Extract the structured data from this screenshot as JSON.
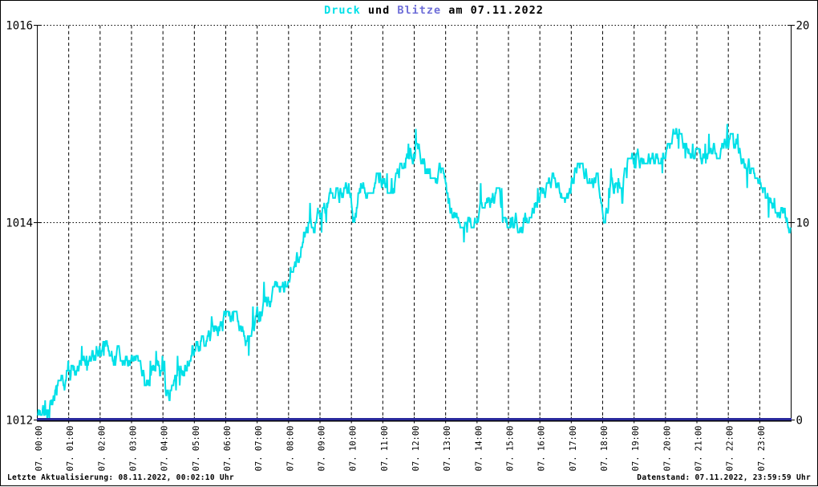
{
  "title": {
    "druck": "Druck",
    "und": " und ",
    "blitze": "Blitze",
    "date": " am 07.11.2022"
  },
  "footer": {
    "left": "Letzte Aktualisierung: 08.11.2022, 00:02:10 Uhr",
    "right": "Datenstand: 07.11.2022, 23:59:59 Uhr"
  },
  "colors": {
    "druck": "#00E0E8",
    "blitze_title": "#6E6ED8",
    "blitze_line": "#28289B",
    "grid": "#000000",
    "background": "#FFFFFF"
  },
  "chart_data": {
    "type": "line",
    "title": "Druck und Blitze am 07.11.2022",
    "grid": {
      "vertical": "hourly dashed",
      "horizontal": "dotted at 1014 and 1016"
    },
    "x_axis": {
      "range_hours": [
        0,
        24
      ],
      "labels": [
        "07. 00:00",
        "07. 01:00",
        "07. 02:00",
        "07. 03:00",
        "07. 04:00",
        "07. 05:00",
        "07. 06:00",
        "07. 07:00",
        "07. 08:00",
        "07. 09:00",
        "07. 10:00",
        "07. 11:00",
        "07. 12:00",
        "07. 13:00",
        "07. 14:00",
        "07. 15:00",
        "07. 16:00",
        "07. 17:00",
        "07. 18:00",
        "07. 19:00",
        "07. 20:00",
        "07. 21:00",
        "07. 22:00",
        "07. 23:00"
      ]
    },
    "left_axis": {
      "series": "Druck",
      "range": [
        1012,
        1016
      ],
      "ticks": [
        1012,
        1014,
        1016
      ],
      "labels": [
        "1012",
        "1014",
        "1016"
      ]
    },
    "right_axis": {
      "series": "Blitze",
      "range": [
        0,
        20
      ],
      "ticks": [
        0,
        10,
        20
      ],
      "labels": [
        "0",
        "10",
        "20"
      ]
    },
    "series": [
      {
        "name": "Druck",
        "axis": "left",
        "unit": "hPa",
        "color": "#00E0E8",
        "sample_minutes": 1,
        "noise": {
          "step_hpa": 0.05,
          "walk_levels": 2,
          "spike_prob": 0.05,
          "spike_hpa": 0.2,
          "seed": 20221107
        },
        "trend_points_hour_hpa": [
          [
            0.0,
            1012.07
          ],
          [
            0.3,
            1012.18
          ],
          [
            0.6,
            1012.28
          ],
          [
            1.0,
            1012.4
          ],
          [
            1.5,
            1012.55
          ],
          [
            1.9,
            1012.63
          ],
          [
            2.2,
            1012.7
          ],
          [
            2.5,
            1012.62
          ],
          [
            2.8,
            1012.66
          ],
          [
            3.1,
            1012.55
          ],
          [
            3.5,
            1012.45
          ],
          [
            3.8,
            1012.52
          ],
          [
            4.0,
            1012.42
          ],
          [
            4.2,
            1012.15
          ],
          [
            4.45,
            1012.4
          ],
          [
            4.7,
            1012.58
          ],
          [
            5.0,
            1012.78
          ],
          [
            5.4,
            1012.88
          ],
          [
            5.8,
            1012.95
          ],
          [
            6.1,
            1013.02
          ],
          [
            6.4,
            1012.97
          ],
          [
            6.7,
            1012.9
          ],
          [
            7.0,
            1013.08
          ],
          [
            7.4,
            1013.22
          ],
          [
            7.8,
            1013.38
          ],
          [
            8.2,
            1013.6
          ],
          [
            8.6,
            1013.85
          ],
          [
            9.0,
            1014.15
          ],
          [
            9.3,
            1014.27
          ],
          [
            9.6,
            1014.22
          ],
          [
            9.9,
            1014.3
          ],
          [
            10.1,
            1014.05
          ],
          [
            10.35,
            1014.35
          ],
          [
            10.7,
            1014.4
          ],
          [
            11.0,
            1014.44
          ],
          [
            11.3,
            1014.4
          ],
          [
            11.6,
            1014.5
          ],
          [
            11.9,
            1014.65
          ],
          [
            12.1,
            1014.72
          ],
          [
            12.35,
            1014.62
          ],
          [
            12.6,
            1014.55
          ],
          [
            12.9,
            1014.45
          ],
          [
            13.15,
            1014.2
          ],
          [
            13.5,
            1014.05
          ],
          [
            14.0,
            1014.08
          ],
          [
            14.35,
            1014.15
          ],
          [
            14.7,
            1014.25
          ],
          [
            15.0,
            1014.05
          ],
          [
            15.4,
            1013.98
          ],
          [
            15.7,
            1014.15
          ],
          [
            16.0,
            1014.32
          ],
          [
            16.4,
            1014.38
          ],
          [
            16.8,
            1014.32
          ],
          [
            17.1,
            1014.48
          ],
          [
            17.5,
            1014.52
          ],
          [
            17.8,
            1014.45
          ],
          [
            18.05,
            1014.08
          ],
          [
            18.3,
            1014.35
          ],
          [
            18.6,
            1014.45
          ],
          [
            19.0,
            1014.6
          ],
          [
            19.3,
            1014.72
          ],
          [
            19.6,
            1014.68
          ],
          [
            20.0,
            1014.75
          ],
          [
            20.3,
            1014.85
          ],
          [
            20.6,
            1014.8
          ],
          [
            20.9,
            1014.68
          ],
          [
            21.2,
            1014.6
          ],
          [
            21.5,
            1014.68
          ],
          [
            21.8,
            1014.8
          ],
          [
            22.1,
            1014.85
          ],
          [
            22.4,
            1014.7
          ],
          [
            22.7,
            1014.62
          ],
          [
            23.0,
            1014.5
          ],
          [
            23.2,
            1014.35
          ],
          [
            23.5,
            1014.2
          ],
          [
            23.75,
            1014.1
          ],
          [
            23.983,
            1014.0
          ]
        ]
      },
      {
        "name": "Blitze",
        "axis": "right",
        "unit": "count",
        "color": "#28289B",
        "constant_value": 0
      }
    ]
  }
}
